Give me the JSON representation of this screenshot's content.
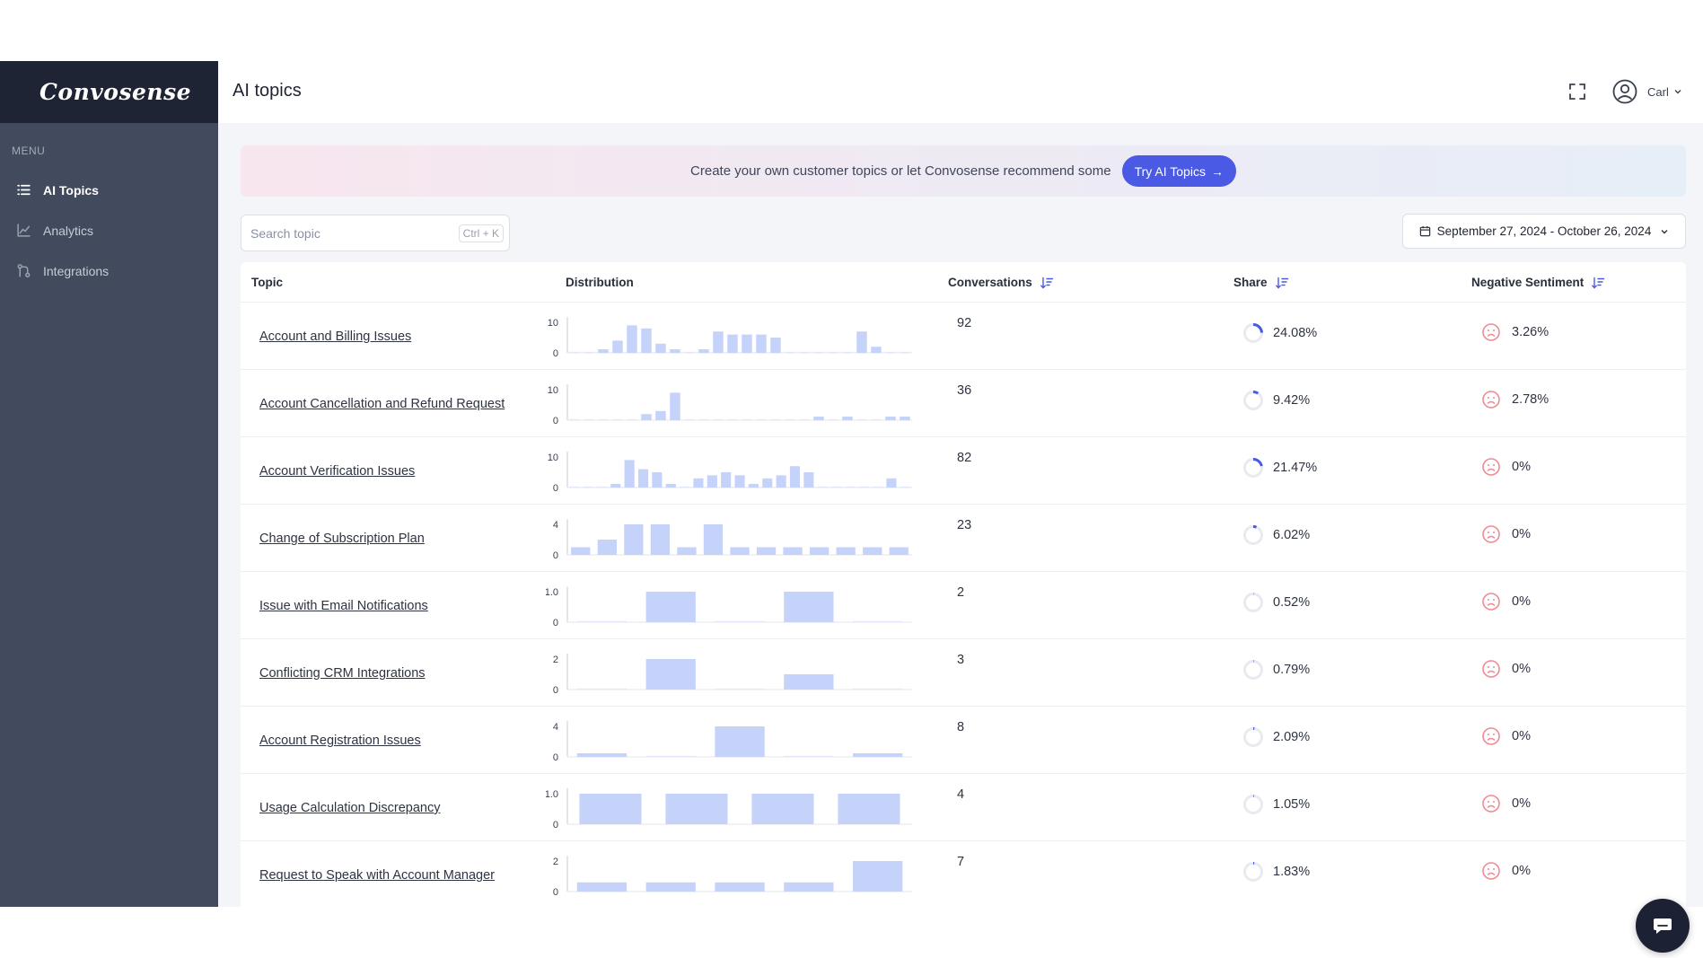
{
  "app": {
    "logo": "Convosense",
    "menu_label": "MENU",
    "nav": [
      {
        "label": "AI Topics",
        "icon": "list-icon",
        "active": true
      },
      {
        "label": "Analytics",
        "icon": "line-chart-icon",
        "active": false
      },
      {
        "label": "Integrations",
        "icon": "integrations-icon",
        "active": false
      }
    ]
  },
  "header": {
    "title": "AI topics",
    "user_name": "Carl"
  },
  "banner": {
    "text": "Create your own customer topics or let Convosense recommend some",
    "button": "Try AI Topics",
    "button_arrow": "→"
  },
  "search": {
    "placeholder": "Search topic",
    "shortcut": "Ctrl + K"
  },
  "date_range": "September 27, 2024 - October 26, 2024",
  "table": {
    "columns": {
      "topic": "Topic",
      "distribution": "Distribution",
      "conversations": "Conversations",
      "share": "Share",
      "negative": "Negative Sentiment"
    },
    "rows": [
      {
        "topic": "Account and Billing Issues",
        "conversations": "92",
        "share": "24.08%",
        "share_value": 0.2408,
        "negative": "3.26%",
        "dist": {
          "ymax": 10,
          "ticks": [
            "10",
            "0"
          ],
          "values": [
            0,
            0,
            1,
            4,
            9,
            8,
            3,
            1,
            0,
            1,
            7,
            6,
            6,
            6,
            5,
            0,
            0,
            0,
            0,
            0,
            7,
            2,
            0,
            0
          ]
        }
      },
      {
        "topic": "Account Cancellation and Refund Request",
        "conversations": "36",
        "share": "9.42%",
        "share_value": 0.0942,
        "negative": "2.78%",
        "dist": {
          "ymax": 10,
          "ticks": [
            "10",
            "0"
          ],
          "values": [
            0,
            0,
            0,
            0,
            0,
            2,
            3,
            9,
            0,
            0,
            0,
            0,
            0,
            0,
            0,
            0,
            0,
            1,
            0,
            1,
            0,
            0,
            1,
            1
          ]
        }
      },
      {
        "topic": "Account Verification Issues",
        "conversations": "82",
        "share": "21.47%",
        "share_value": 0.2147,
        "negative": "0%",
        "dist": {
          "ymax": 10,
          "ticks": [
            "10",
            "0"
          ],
          "values": [
            0,
            0,
            0,
            1,
            9,
            6,
            5,
            1,
            0,
            3,
            4,
            5,
            4,
            1,
            3,
            4,
            7,
            5,
            0,
            0,
            0,
            0,
            0,
            3,
            0
          ]
        }
      },
      {
        "topic": "Change of Subscription Plan",
        "conversations": "23",
        "share": "6.02%",
        "share_value": 0.0602,
        "negative": "0%",
        "dist": {
          "ymax": 4,
          "ticks": [
            "4",
            "0"
          ],
          "values": [
            1,
            2,
            4,
            4,
            1,
            4,
            1,
            1,
            1,
            1,
            1,
            1,
            1
          ]
        }
      },
      {
        "topic": "Issue with Email Notifications",
        "conversations": "2",
        "share": "0.52%",
        "share_value": 0.0052,
        "negative": "0%",
        "dist": {
          "ymax": 1,
          "ticks": [
            "1.0",
            "0"
          ],
          "values": [
            0,
            1,
            0,
            1,
            0
          ]
        }
      },
      {
        "topic": "Conflicting CRM Integrations",
        "conversations": "3",
        "share": "0.79%",
        "share_value": 0.0079,
        "negative": "0%",
        "dist": {
          "ymax": 2,
          "ticks": [
            "2",
            "0"
          ],
          "values": [
            0,
            2,
            0,
            1,
            0
          ]
        }
      },
      {
        "topic": "Account Registration Issues",
        "conversations": "8",
        "share": "2.09%",
        "share_value": 0.0209,
        "negative": "0%",
        "dist": {
          "ymax": 4,
          "ticks": [
            "4",
            "0"
          ],
          "values": [
            0.4,
            0,
            4.8,
            0,
            0.4
          ]
        }
      },
      {
        "topic": "Usage Calculation Discrepancy",
        "conversations": "4",
        "share": "1.05%",
        "share_value": 0.0105,
        "negative": "0%",
        "dist": {
          "ymax": 1,
          "ticks": [
            "1.0",
            "0"
          ],
          "values": [
            1,
            1,
            1,
            1
          ]
        }
      },
      {
        "topic": "Request to Speak with Account Manager",
        "conversations": "7",
        "share": "1.83%",
        "share_value": 0.0183,
        "negative": "0%",
        "dist": {
          "ymax": 2,
          "ticks": [
            "2",
            "0"
          ],
          "values": [
            0.6,
            0.6,
            0.6,
            0.6,
            2.3
          ]
        }
      }
    ]
  },
  "colors": {
    "accent": "#4b5ae4",
    "sidebar": "#424a5d",
    "logo_bg": "#1e2433",
    "bar": "#c5d3fb",
    "negative_face": "#f08a93"
  }
}
